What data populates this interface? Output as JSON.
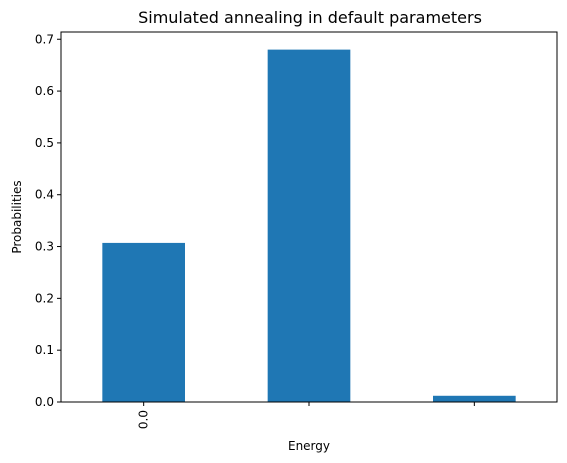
{
  "chart_data": {
    "type": "bar",
    "title": "Simulated annealing in default parameters",
    "xlabel": "Energy",
    "ylabel": "Probabilities",
    "categories": [
      "0.0",
      "",
      ""
    ],
    "values": [
      0.307,
      0.68,
      0.012
    ],
    "ylim": [
      0,
      0.714
    ],
    "yticks": [
      0.0,
      0.1,
      0.2,
      0.3,
      0.4,
      0.5,
      0.6,
      0.7
    ],
    "ytick_labels": [
      "0.0",
      "0.1",
      "0.2",
      "0.3",
      "0.4",
      "0.5",
      "0.6",
      "0.7"
    ],
    "bar_color": "#1f77b4",
    "grid": false,
    "legend": "none"
  }
}
